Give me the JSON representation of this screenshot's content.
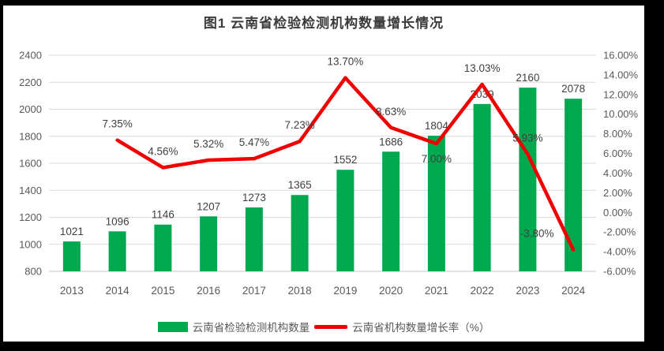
{
  "colors": {
    "frame": "#000000",
    "panel": "#FFFFFF",
    "bar": "#00A94F",
    "line": "#F00000",
    "grid": "#D9D9D9",
    "baseline": "#C6C6C6",
    "axis_text": "#595959",
    "data_label": "#404040",
    "title_text": "#3B3B3B"
  },
  "chart_data": {
    "type": "combo-bar-line",
    "title": "图1  云南省检验检测机构数量增长情况",
    "categories": [
      "2013",
      "2014",
      "2015",
      "2016",
      "2017",
      "2018",
      "2019",
      "2020",
      "2021",
      "2022",
      "2023",
      "2024"
    ],
    "series": [
      {
        "name": "云南省检验检测机构数量",
        "type": "bar",
        "axis": "left",
        "color": "#00A94F",
        "values": [
          1021,
          1096,
          1146,
          1207,
          1273,
          1365,
          1552,
          1686,
          1804,
          2039,
          2160,
          2078
        ],
        "labels": [
          "1021",
          "1096",
          "1146",
          "1207",
          "1273",
          "1365",
          "1552",
          "1686",
          "1804",
          "2039",
          "2160",
          "2078"
        ]
      },
      {
        "name": "云南省机构数量增长率（%）",
        "type": "line",
        "axis": "right",
        "color": "#F00000",
        "values": [
          null,
          7.35,
          4.56,
          5.32,
          5.47,
          7.23,
          13.7,
          8.63,
          7.0,
          13.03,
          5.93,
          -3.8
        ],
        "labels": [
          null,
          "7.35%",
          "4.56%",
          "5.32%",
          "5.47%",
          "7.23%",
          "13.70%",
          "8.63%",
          "7.00%",
          "13.03%",
          "5.93%",
          "-3.80%"
        ],
        "label_offsets": {
          "8": [
            0,
            24
          ],
          "11": [
            -46,
            -16
          ]
        }
      }
    ],
    "left_axis": {
      "min": 800,
      "max": 2400,
      "step": 200,
      "tick_labels": [
        "2400",
        "2200",
        "2000",
        "1800",
        "1600",
        "1400",
        "1200",
        "1000",
        "800"
      ]
    },
    "right_axis": {
      "min": -6,
      "max": 16,
      "step": 2,
      "tick_labels": [
        "16.00%",
        "14.00%",
        "12.00%",
        "10.00%",
        "8.00%",
        "6.00%",
        "4.00%",
        "2.00%",
        "0.00%",
        "-2.00%",
        "-4.00%",
        "-6.00%"
      ]
    },
    "grid": true,
    "legend_position": "bottom"
  }
}
